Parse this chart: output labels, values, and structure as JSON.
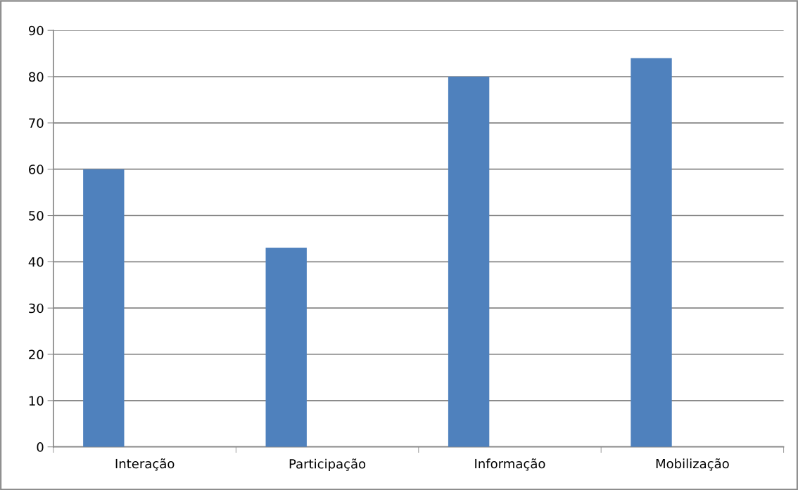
{
  "chart_data": {
    "type": "bar",
    "categories": [
      "Interação",
      "Participação",
      "Informação",
      "Mobilização"
    ],
    "values": [
      60,
      43,
      80,
      84
    ],
    "color": "#4f81bd",
    "ylim": [
      0,
      90
    ],
    "yticks": [
      0,
      10,
      20,
      30,
      40,
      50,
      60,
      70,
      80,
      90
    ],
    "grid": "y"
  }
}
